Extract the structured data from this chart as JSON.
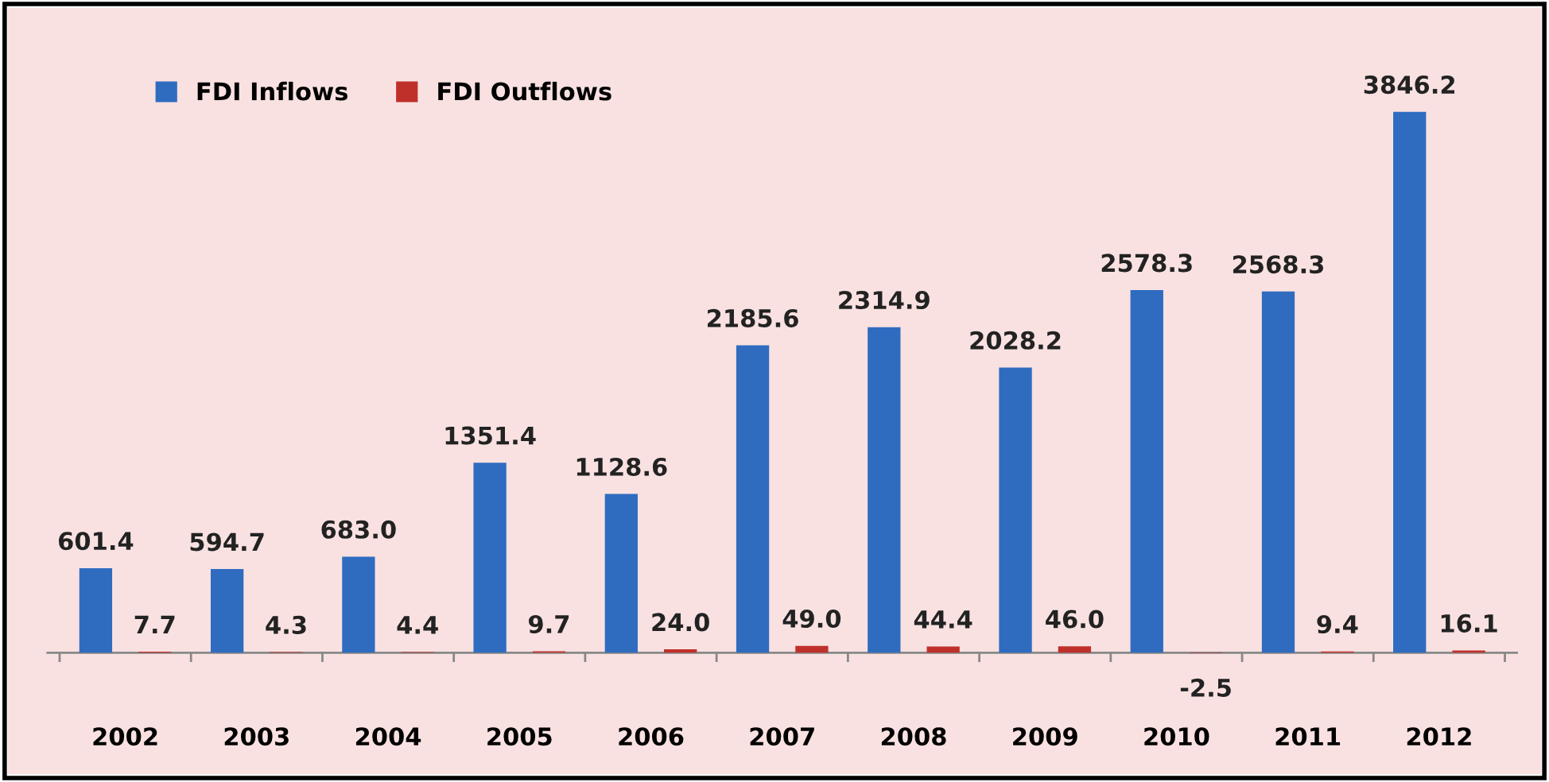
{
  "chart_data": {
    "type": "bar",
    "categories": [
      "2002",
      "2003",
      "2004",
      "2005",
      "2006",
      "2007",
      "2008",
      "2009",
      "2010",
      "2011",
      "2012"
    ],
    "series": [
      {
        "name": "FDI Inflows",
        "color": "#2f6cc0",
        "values": [
          601.4,
          594.7,
          683.0,
          1351.4,
          1128.6,
          2185.6,
          2314.9,
          2028.2,
          2578.3,
          2568.3,
          3846.2
        ],
        "value_labels": [
          "601.4",
          "594.7",
          "683.0",
          "1351.4",
          "1128.6",
          "2185.6",
          "2314.9",
          "2028.2",
          "2578.3",
          "2568.3",
          "3846.2"
        ]
      },
      {
        "name": "FDI Outflows",
        "color": "#c0302b",
        "values": [
          7.7,
          4.3,
          4.4,
          9.7,
          24.0,
          49.0,
          44.4,
          46.0,
          -2.5,
          9.4,
          16.1
        ],
        "value_labels": [
          "7.7",
          "4.3",
          "4.4",
          "9.7",
          "24.0",
          "49.0",
          "44.4",
          "46.0",
          "-2.5",
          "9.4",
          "16.1"
        ]
      }
    ],
    "legend": "top left",
    "grid": false
  }
}
